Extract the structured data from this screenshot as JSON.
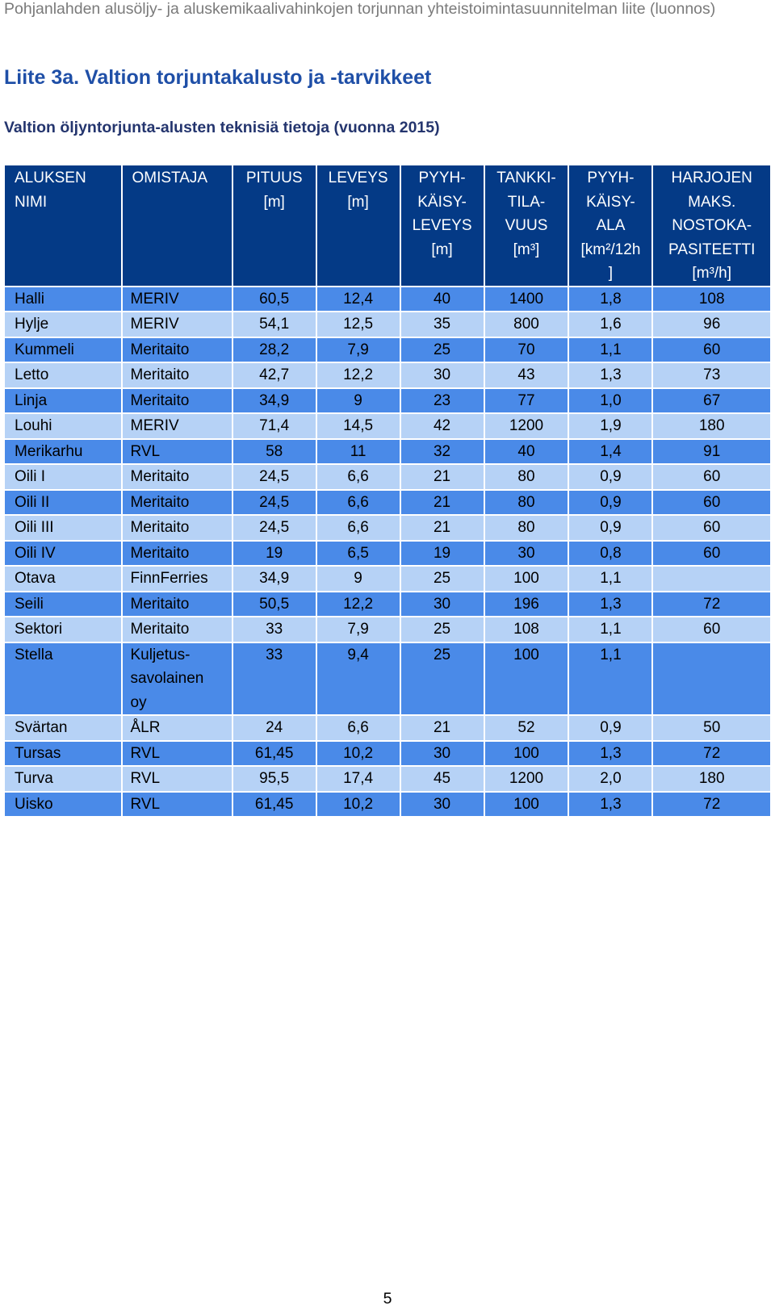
{
  "running_header": "Pohjanlahden alusöljy- ja aluskemikaalivahinkojen torjunnan yhteistoimintasuunnitelman liite (luonnos)",
  "title": "Liite 3a. Valtion torjuntakalusto ja -tarvikkeet",
  "caption": "Valtion öljyntorjunta-alusten teknisiä tietoja (vuonna 2015)",
  "columns": [
    [
      "ALUKSEN",
      "NIMI"
    ],
    [
      "OMISTAJA"
    ],
    [
      "PITUUS",
      "[m]"
    ],
    [
      "LEVEYS",
      "[m]"
    ],
    [
      "PYYH-",
      "KÄISY-",
      "LEVEYS",
      "[m]"
    ],
    [
      "TANKKI-",
      "TILA-",
      "VUUS",
      "[m³]"
    ],
    [
      "PYYH-",
      "KÄISY-",
      "ALA",
      "[km²/12h",
      "]"
    ],
    [
      "HARJOJEN",
      "MAKS.",
      "NOSTOKA-",
      "PASITEETTI",
      "[m³/h]"
    ]
  ],
  "rows": [
    {
      "name": "Halli",
      "owner": "MERIV",
      "length": "60,5",
      "width": "12,4",
      "sweep_width": "40",
      "tank": "1400",
      "sweep_area": "1,8",
      "brush_capacity": "108"
    },
    {
      "name": "Hylje",
      "owner": "MERIV",
      "length": "54,1",
      "width": "12,5",
      "sweep_width": "35",
      "tank": "800",
      "sweep_area": "1,6",
      "brush_capacity": "96"
    },
    {
      "name": "Kummeli",
      "owner": "Meritaito",
      "length": "28,2",
      "width": "7,9",
      "sweep_width": "25",
      "tank": "70",
      "sweep_area": "1,1",
      "brush_capacity": "60"
    },
    {
      "name": "Letto",
      "owner": "Meritaito",
      "length": "42,7",
      "width": "12,2",
      "sweep_width": "30",
      "tank": "43",
      "sweep_area": "1,3",
      "brush_capacity": "73"
    },
    {
      "name": "Linja",
      "owner": "Meritaito",
      "length": "34,9",
      "width": "9",
      "sweep_width": "23",
      "tank": "77",
      "sweep_area": "1,0",
      "brush_capacity": "67"
    },
    {
      "name": "Louhi",
      "owner": "MERIV",
      "length": "71,4",
      "width": "14,5",
      "sweep_width": "42",
      "tank": "1200",
      "sweep_area": "1,9",
      "brush_capacity": "180"
    },
    {
      "name": "Merikarhu",
      "owner": "RVL",
      "length": "58",
      "width": "11",
      "sweep_width": "32",
      "tank": "40",
      "sweep_area": "1,4",
      "brush_capacity": "91"
    },
    {
      "name": "Oili I",
      "owner": "Meritaito",
      "length": "24,5",
      "width": "6,6",
      "sweep_width": "21",
      "tank": "80",
      "sweep_area": "0,9",
      "brush_capacity": "60"
    },
    {
      "name": "Oili II",
      "owner": "Meritaito",
      "length": "24,5",
      "width": "6,6",
      "sweep_width": "21",
      "tank": "80",
      "sweep_area": "0,9",
      "brush_capacity": "60"
    },
    {
      "name": "Oili III",
      "owner": "Meritaito",
      "length": "24,5",
      "width": "6,6",
      "sweep_width": "21",
      "tank": "80",
      "sweep_area": "0,9",
      "brush_capacity": "60"
    },
    {
      "name": "Oili IV",
      "owner": "Meritaito",
      "length": "19",
      "width": "6,5",
      "sweep_width": "19",
      "tank": "30",
      "sweep_area": "0,8",
      "brush_capacity": "60"
    },
    {
      "name": "Otava",
      "owner": "FinnFerries",
      "length": "34,9",
      "width": "9",
      "sweep_width": "25",
      "tank": "100",
      "sweep_area": "1,1",
      "brush_capacity": ""
    },
    {
      "name": "Seili",
      "owner": "Meritaito",
      "length": "50,5",
      "width": "12,2",
      "sweep_width": "30",
      "tank": "196",
      "sweep_area": "1,3",
      "brush_capacity": "72"
    },
    {
      "name": "Sektori",
      "owner": "Meritaito",
      "length": "33",
      "width": "7,9",
      "sweep_width": "25",
      "tank": "108",
      "sweep_area": "1,1",
      "brush_capacity": "60"
    },
    {
      "name": "Stella",
      "owner": "Kuljetus-\nsavolainen\noy",
      "length": "33",
      "width": "9,4",
      "sweep_width": "25",
      "tank": "100",
      "sweep_area": "1,1",
      "brush_capacity": ""
    },
    {
      "name": "Svärtan",
      "owner": "ÅLR",
      "length": "24",
      "width": "6,6",
      "sweep_width": "21",
      "tank": "52",
      "sweep_area": "0,9",
      "brush_capacity": "50"
    },
    {
      "name": "Tursas",
      "owner": "RVL",
      "length": "61,45",
      "width": "10,2",
      "sweep_width": "30",
      "tank": "100",
      "sweep_area": "1,3",
      "brush_capacity": "72"
    },
    {
      "name": "Turva",
      "owner": "RVL",
      "length": "95,5",
      "width": "17,4",
      "sweep_width": "45",
      "tank": "1200",
      "sweep_area": "2,0",
      "brush_capacity": "180"
    },
    {
      "name": "Uisko",
      "owner": "RVL",
      "length": "61,45",
      "width": "10,2",
      "sweep_width": "30",
      "tank": "100",
      "sweep_area": "1,3",
      "brush_capacity": "72"
    }
  ],
  "page_number": "5",
  "colors": {
    "header_bg": "#043a86",
    "row_dark": "#4a8ae8",
    "row_light": "#b6d2f6",
    "title": "#1f4fa7"
  }
}
